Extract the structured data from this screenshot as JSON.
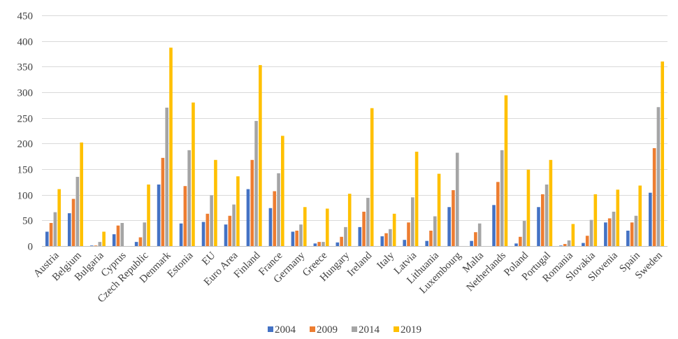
{
  "chart_data": {
    "type": "bar",
    "title": "",
    "xlabel": "",
    "ylabel": "",
    "ylim": [
      0,
      450
    ],
    "yticks": [
      0,
      50,
      100,
      150,
      200,
      250,
      300,
      350,
      400,
      450
    ],
    "grid": "horizontal",
    "legend_position": "bottom",
    "categories": [
      "Austria",
      "Belgium",
      "Bulgaria",
      "Cyprus",
      "Czech Republic",
      "Denmark",
      "Estonia",
      "EU",
      "Euro Area",
      "Finland",
      "France",
      "Germany",
      "Greece",
      "Hungary",
      "Ireland",
      "Italy",
      "Latvia",
      "Lithuania",
      "Luxembourg",
      "Malta",
      "Netherlands",
      "Poland",
      "Portugal",
      "Romania",
      "Slovakia",
      "Slovenia",
      "Spain",
      "Sweden"
    ],
    "series": [
      {
        "name": "2004",
        "color": "#4472c4",
        "values": [
          28,
          64,
          1,
          23,
          8,
          120,
          44,
          47,
          42,
          111,
          74,
          28,
          5,
          7,
          37,
          19,
          12,
          10,
          76,
          10,
          80,
          5,
          76,
          1,
          6,
          46,
          30,
          104
        ]
      },
      {
        "name": "2009",
        "color": "#ed7d31",
        "values": [
          45,
          92,
          1,
          40,
          17,
          172,
          117,
          63,
          59,
          168,
          107,
          30,
          8,
          18,
          67,
          25,
          46,
          30,
          109,
          27,
          125,
          18,
          101,
          4,
          20,
          54,
          46,
          191
        ]
      },
      {
        "name": "2014",
        "color": "#a5a5a5",
        "values": [
          66,
          135,
          8,
          45,
          46,
          270,
          187,
          99,
          81,
          244,
          142,
          42,
          8,
          37,
          94,
          33,
          95,
          58,
          182,
          44,
          187,
          49,
          120,
          11,
          51,
          67,
          59,
          271
        ]
      },
      {
        "name": "2019",
        "color": "#ffc000",
        "values": [
          111,
          202,
          28,
          0,
          120,
          387,
          280,
          168,
          136,
          353,
          215,
          76,
          73,
          102,
          269,
          63,
          184,
          141,
          0,
          0,
          294,
          149,
          168,
          43,
          101,
          110,
          118,
          360
        ]
      }
    ]
  }
}
